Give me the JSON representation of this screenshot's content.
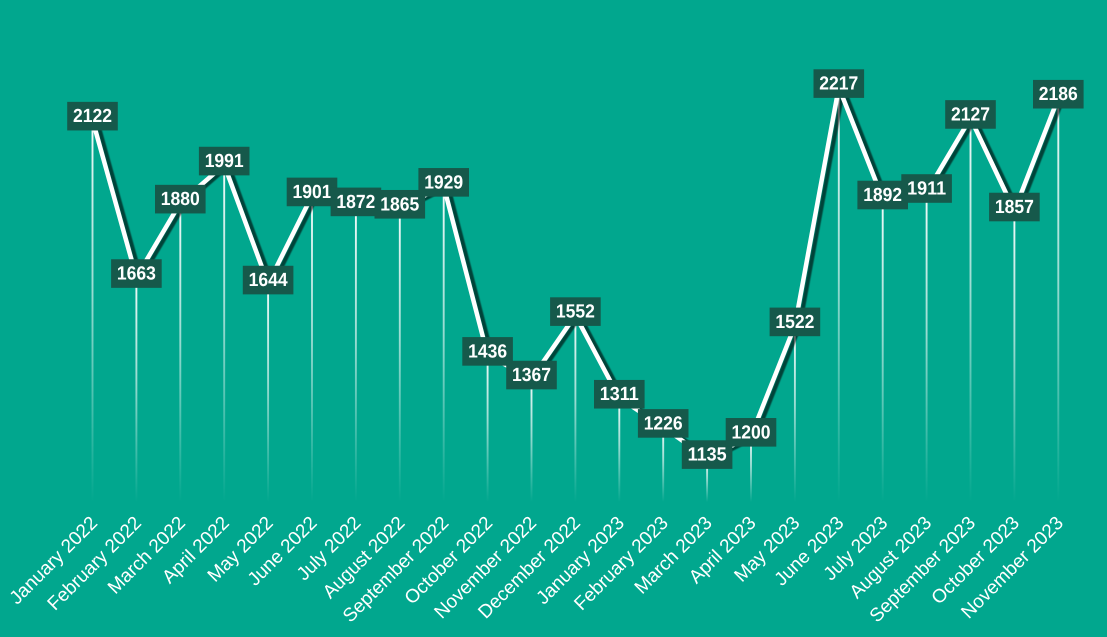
{
  "chart_data": {
    "type": "line",
    "title": "",
    "xlabel": "",
    "ylabel": "",
    "legend": false,
    "categories": [
      "January 2022",
      "February 2022",
      "March 2022",
      "April 2022",
      "May 2022",
      "June 2022",
      "July 2022",
      "August 2022",
      "September 2022",
      "October 2022",
      "November 2022",
      "December 2022",
      "January 2023",
      "February 2023",
      "March 2023",
      "April 2023",
      "May 2023",
      "June 2023",
      "July 2023",
      "August 2023",
      "September 2023",
      "October 2023",
      "November 2023"
    ],
    "values": [
      2122,
      1663,
      1880,
      1991,
      1644,
      1901,
      1872,
      1865,
      1929,
      1436,
      1367,
      1552,
      1311,
      1226,
      1135,
      1200,
      1522,
      2217,
      1892,
      1911,
      2127,
      1857,
      2186
    ],
    "data_labels_visible": true,
    "drop_lines": true,
    "grid": false,
    "colors": {
      "background": "#01A78E",
      "series_line": "#FFFFFF",
      "series_shadow": "rgba(0,0,0,0.6)",
      "drop_line": "#FFFFFF",
      "label_box": "#16594B",
      "label_text": "#FFFFFF",
      "axis_label_text": "#FFFFFF"
    }
  }
}
